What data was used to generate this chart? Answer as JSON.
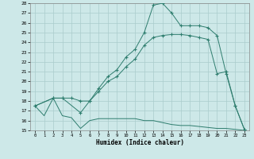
{
  "xlabel": "Humidex (Indice chaleur)",
  "bg_color": "#cde8e8",
  "grid_color": "#aacccc",
  "line_color": "#2e7d6e",
  "xlim": [
    -0.5,
    23.5
  ],
  "ylim": [
    15,
    28
  ],
  "yticks": [
    15,
    16,
    17,
    18,
    19,
    20,
    21,
    22,
    23,
    24,
    25,
    26,
    27,
    28
  ],
  "xticks": [
    0,
    1,
    2,
    3,
    4,
    5,
    6,
    7,
    8,
    9,
    10,
    11,
    12,
    13,
    14,
    15,
    16,
    17,
    18,
    19,
    20,
    21,
    22,
    23
  ],
  "line1_x": [
    0,
    1,
    2,
    3,
    4,
    5,
    6,
    7,
    8,
    9,
    10,
    11,
    12,
    13,
    14,
    15,
    16,
    17,
    18,
    19,
    20,
    21,
    22,
    23
  ],
  "line1_y": [
    17.5,
    16.5,
    18.3,
    16.5,
    16.3,
    15.2,
    16.0,
    16.2,
    16.2,
    16.2,
    16.2,
    16.2,
    16.0,
    16.0,
    15.8,
    15.6,
    15.5,
    15.5,
    15.4,
    15.3,
    15.2,
    15.2,
    15.1,
    15.0
  ],
  "line2_x": [
    0,
    2,
    3,
    5,
    6,
    7,
    8,
    9,
    10,
    11,
    12,
    13,
    14,
    15,
    16,
    17,
    18,
    19,
    20,
    21,
    22,
    23
  ],
  "line2_y": [
    17.5,
    18.3,
    18.3,
    16.8,
    18.0,
    19.3,
    20.5,
    21.2,
    22.5,
    23.3,
    25.0,
    27.8,
    28.0,
    27.0,
    25.7,
    25.7,
    25.7,
    25.5,
    24.7,
    20.8,
    17.5,
    15.1
  ],
  "line3_x": [
    0,
    2,
    3,
    4,
    5,
    6,
    7,
    8,
    9,
    10,
    11,
    12,
    13,
    14,
    15,
    16,
    17,
    18,
    19,
    20,
    21,
    22,
    23
  ],
  "line3_y": [
    17.5,
    18.3,
    18.3,
    18.3,
    18.0,
    18.0,
    19.0,
    20.0,
    20.5,
    21.5,
    22.3,
    23.7,
    24.5,
    24.7,
    24.8,
    24.8,
    24.7,
    24.5,
    24.3,
    20.8,
    21.0,
    17.5,
    15.1
  ]
}
